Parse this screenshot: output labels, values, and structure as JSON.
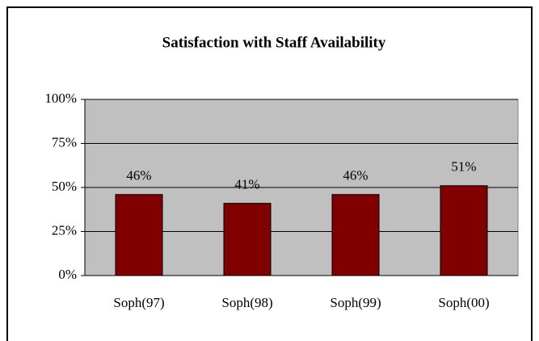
{
  "chart_data": {
    "type": "bar",
    "title": "Satisfaction with Staff Availability",
    "categories": [
      "Soph(97)",
      "Soph(98)",
      "Soph(99)",
      "Soph(00)"
    ],
    "values": [
      46,
      41,
      46,
      51
    ],
    "value_labels": [
      "46%",
      "41%",
      "46%",
      "51%"
    ],
    "color": "#800000",
    "ylim": [
      0,
      100
    ],
    "yticks": [
      {
        "value": 0,
        "label": "0%"
      },
      {
        "value": 25,
        "label": "25%"
      },
      {
        "value": 50,
        "label": "50%"
      },
      {
        "value": 75,
        "label": "75%"
      },
      {
        "value": 100,
        "label": "100%"
      }
    ],
    "grid": true
  }
}
